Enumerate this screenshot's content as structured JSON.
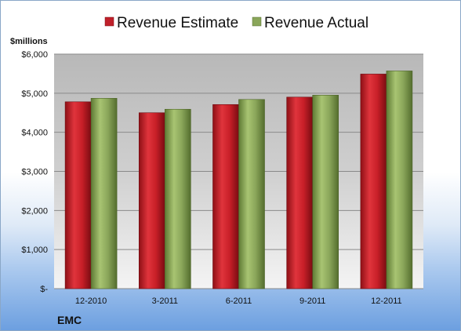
{
  "chart_data": {
    "type": "bar",
    "company": "EMC",
    "unit_label": "$millions",
    "categories": [
      "12-2010",
      "3-2011",
      "6-2011",
      "9-2011",
      "12-2011"
    ],
    "series": [
      {
        "name": "Revenue Estimate",
        "color": "#c0202a",
        "values": [
          4780,
          4500,
          4710,
          4900,
          5490
        ]
      },
      {
        "name": "Revenue Actual",
        "color": "#8aa65a",
        "values": [
          4870,
          4590,
          4840,
          4950,
          5570
        ]
      }
    ],
    "y_ticks": [
      {
        "value": 0,
        "label": "$-"
      },
      {
        "value": 1000,
        "label": "$1,000"
      },
      {
        "value": 2000,
        "label": "$2,000"
      },
      {
        "value": 3000,
        "label": "$3,000"
      },
      {
        "value": 4000,
        "label": "$4,000"
      },
      {
        "value": 5000,
        "label": "$5,000"
      },
      {
        "value": 6000,
        "label": "$6,000"
      }
    ],
    "ylim": [
      0,
      6000
    ],
    "grid": true,
    "legend_position": "top"
  }
}
